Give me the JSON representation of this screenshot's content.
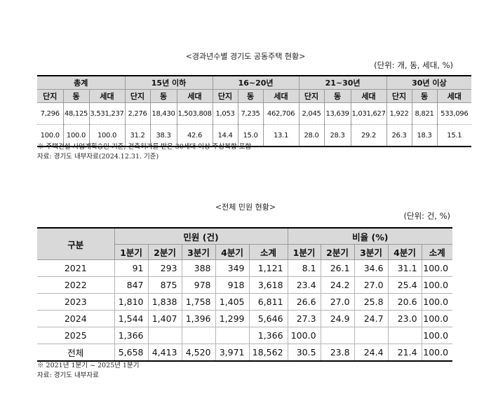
{
  "section1": {
    "title": "<경과년수별 경기도 공동주택 현황>",
    "unit": "(단위: 개, 동, 세대, %)",
    "groups": [
      "총계",
      "15년 이하",
      "16~20년",
      "21~30년",
      "30년 이상"
    ],
    "subheaders": [
      "단지",
      "동",
      "세대"
    ],
    "rows": [
      [
        "7,296",
        "48,125",
        "3,531,237",
        "2,276",
        "18,430",
        "1,503,808",
        "1,053",
        "7,235",
        "462,706",
        "2,045",
        "13,639",
        "1,031,627",
        "1,922",
        "8,821",
        "533,096"
      ],
      [
        "100.0",
        "100.0",
        "100.0",
        "31.2",
        "38.3",
        "42.6",
        "14.4",
        "15.0",
        "13.1",
        "28.0",
        "28.3",
        "29.2",
        "26.3",
        "18.3",
        "15.1"
      ]
    ],
    "note1": "※ 주택건설 사업계획승인 기준, 건축허가를 받은 30세대 이상 주상복합 포함",
    "note2": "자료: 경기도 내부자료(2024.12.31. 기준)"
  },
  "section2": {
    "title": "<전체 민원 현황>",
    "unit": "(단위: 건, %)",
    "header_label": "구분",
    "group_complaints": "민원 (건)",
    "group_ratio": "비율 (%)",
    "subheaders": [
      "1분기",
      "2분기",
      "3분기",
      "4분기",
      "소계"
    ],
    "rows": [
      {
        "label": "2021",
        "values": [
          "91",
          "293",
          "388",
          "349",
          "1,121",
          "8.1",
          "26.1",
          "34.6",
          "31.1",
          "100.0"
        ]
      },
      {
        "label": "2022",
        "values": [
          "847",
          "875",
          "978",
          "918",
          "3,618",
          "23.4",
          "24.2",
          "27.0",
          "25.4",
          "100.0"
        ]
      },
      {
        "label": "2023",
        "values": [
          "1,810",
          "1,838",
          "1,758",
          "1,405",
          "6,811",
          "26.6",
          "27.0",
          "25.8",
          "20.6",
          "100.0"
        ]
      },
      {
        "label": "2024",
        "values": [
          "1,544",
          "1,407",
          "1,396",
          "1,299",
          "5,646",
          "27.3",
          "24.9",
          "24.7",
          "23.0",
          "100.0"
        ]
      },
      {
        "label": "2025",
        "values": [
          "1,366",
          "",
          "",
          "",
          "1,366",
          "100.0",
          "",
          "",
          "",
          "100.0"
        ]
      },
      {
        "label": "전체",
        "values": [
          "5,658",
          "4,413",
          "4,520",
          "3,971",
          "18,562",
          "30.5",
          "23.8",
          "24.4",
          "21.4",
          "100.0"
        ]
      }
    ],
    "note1": "※ 2021년 1분기 ~ 2025년 1분기",
    "note2": "자료: 경기도 내부자료"
  }
}
